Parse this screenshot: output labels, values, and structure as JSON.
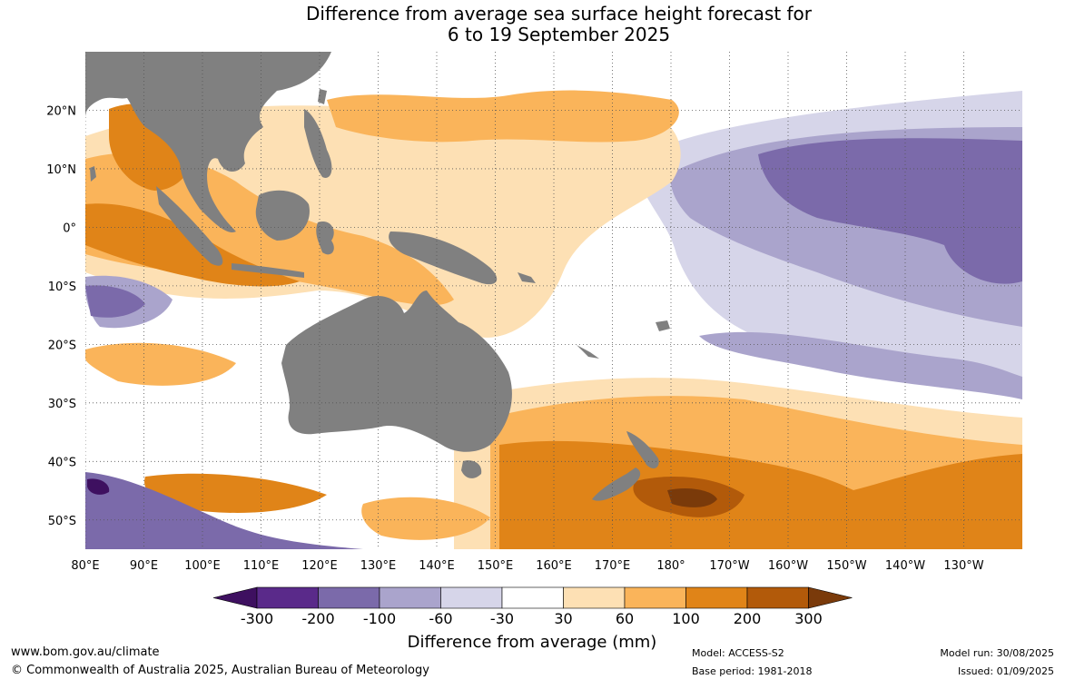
{
  "title": {
    "line1": "Difference from average sea surface height forecast for",
    "line2": "6 to 19 September 2025"
  },
  "axes": {
    "lon_labels": [
      "80°E",
      "90°E",
      "100°E",
      "110°E",
      "120°E",
      "130°E",
      "140°E",
      "150°E",
      "160°E",
      "170°E",
      "180°",
      "170°W",
      "160°W",
      "150°W",
      "140°W",
      "130°W"
    ],
    "lon_values": [
      80,
      90,
      100,
      110,
      120,
      130,
      140,
      150,
      160,
      170,
      180,
      190,
      200,
      210,
      220,
      230
    ],
    "lat_labels": [
      "20°N",
      "10°N",
      "0°",
      "10°S",
      "20°S",
      "30°S",
      "40°S",
      "50°S"
    ],
    "lat_values": [
      20,
      10,
      0,
      -10,
      -20,
      -30,
      -40,
      -50
    ],
    "lon_range": [
      80,
      240
    ],
    "lat_range": [
      -55,
      30
    ],
    "grid": "dotted"
  },
  "colorbar": {
    "title": "Difference from average (mm)",
    "tick_labels": [
      "-300",
      "-200",
      "-100",
      "-60",
      "-30",
      "30",
      "60",
      "100",
      "200",
      "300"
    ],
    "colors": [
      "#3e1060",
      "#5a2a8a",
      "#7b6aaa",
      "#aaa4cc",
      "#d6d5e9",
      "#ffffff",
      "#fde0b4",
      "#fab45a",
      "#e08418",
      "#b25a0a",
      "#7a3a0a"
    ]
  },
  "colors": {
    "land": "#808080",
    "ocean_neutral": "#ffffff",
    "grid": "#555555"
  },
  "footer": {
    "url": "www.bom.gov.au/climate",
    "copyright": "© Commonwealth of Australia 2025, Australian Bureau of Meteorology",
    "model": "Model: ACCESS-S2",
    "base_period": "Base period: 1981-2018",
    "model_run": "Model run: 30/08/2025",
    "issued": "Issued: 01/09/2025"
  }
}
